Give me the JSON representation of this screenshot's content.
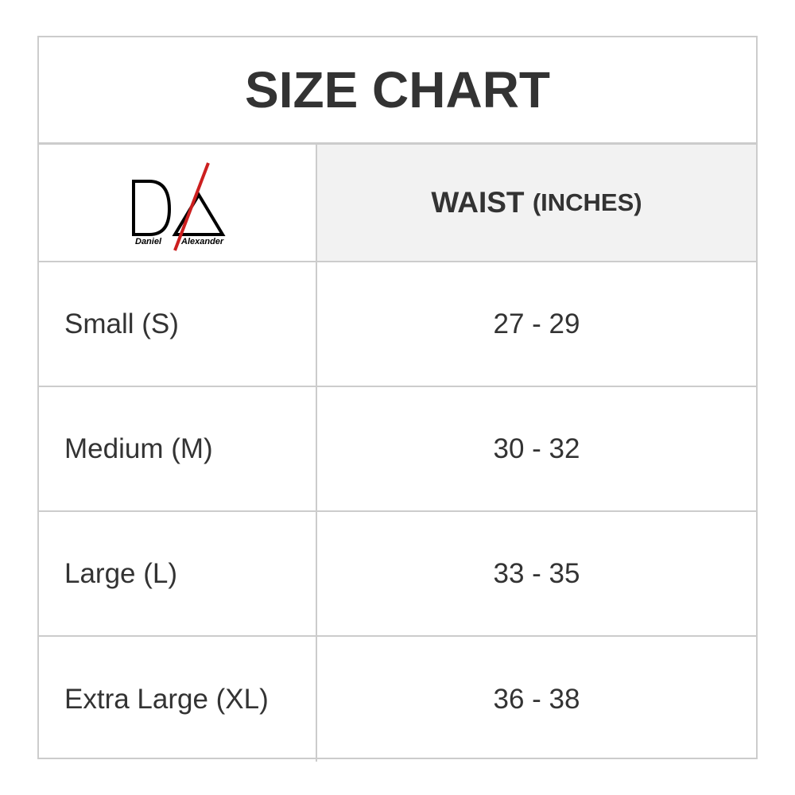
{
  "title": "SIZE CHART",
  "logo": {
    "text_left": "Daniel",
    "text_right": "Alexander",
    "accent": "#cc1f1f"
  },
  "header": {
    "measure": "WAIST",
    "unit": "(INCHES)"
  },
  "rows": [
    {
      "size": "Small (S)",
      "waist": "27 - 29"
    },
    {
      "size": "Medium (M)",
      "waist": "30 - 32"
    },
    {
      "size": "Large (L)",
      "waist": "33 - 35"
    },
    {
      "size": "Extra Large (XL)",
      "waist": "36 - 38"
    }
  ]
}
